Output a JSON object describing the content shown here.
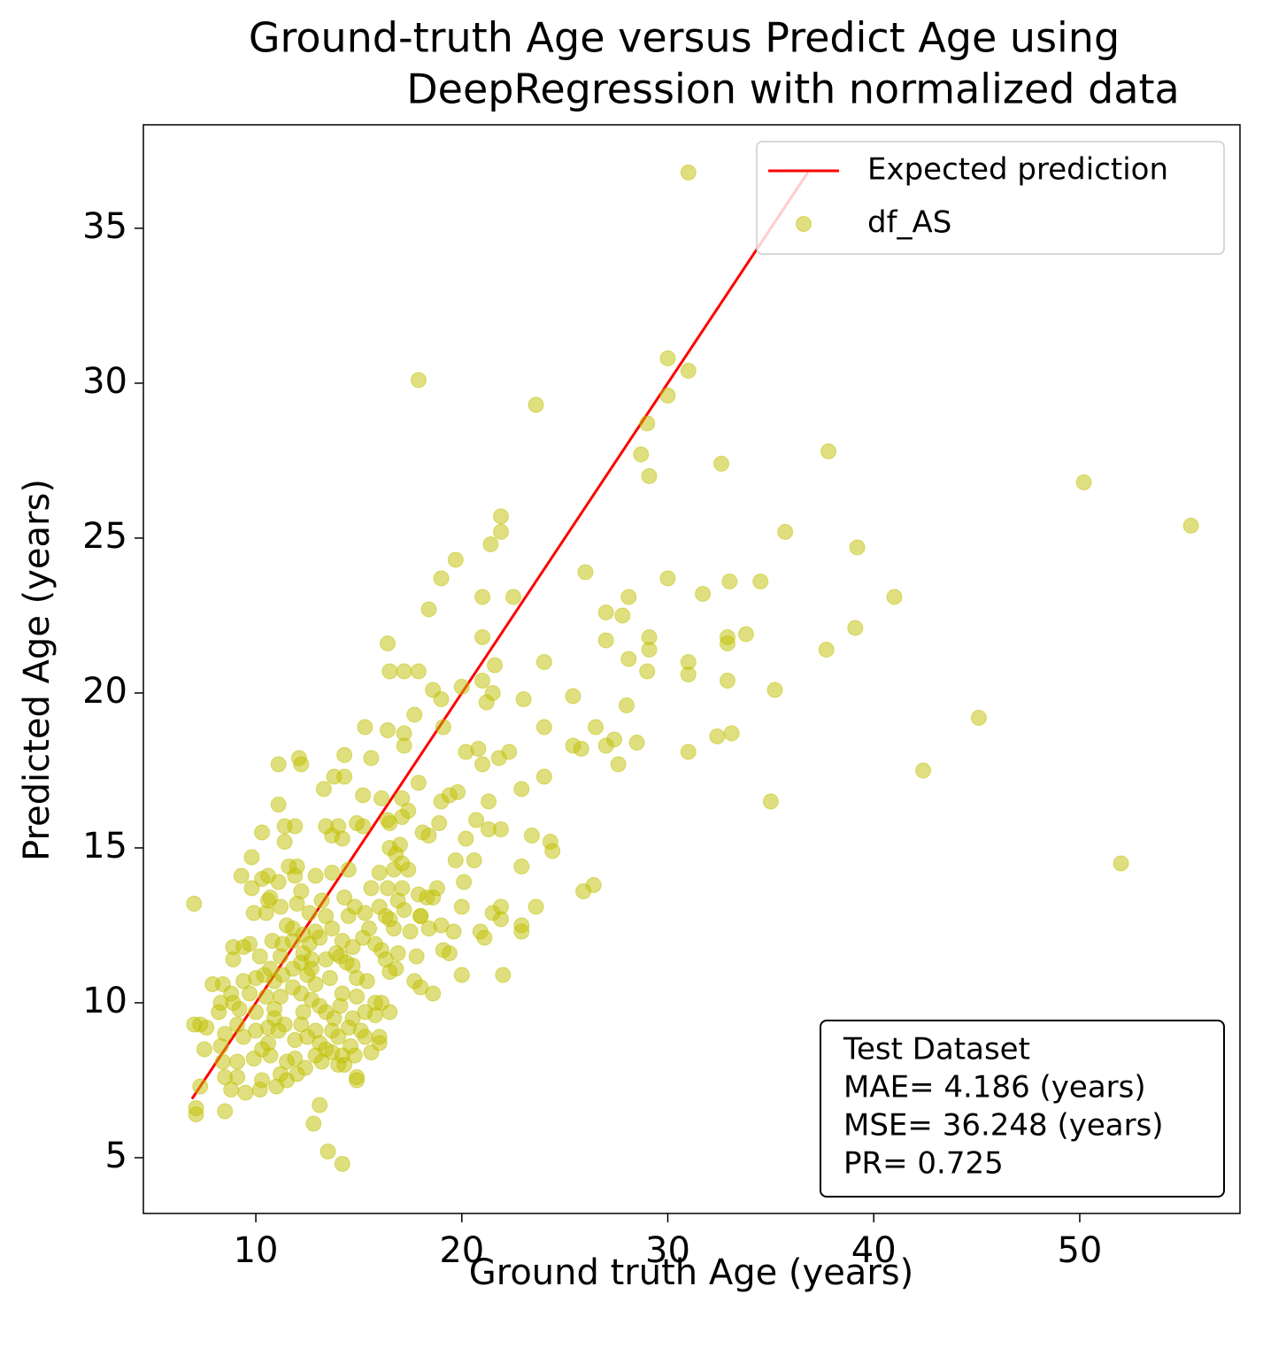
{
  "chart_data": {
    "type": "scatter",
    "title": [
      "Ground-truth Age versus Predict Age using",
      "DeepRegression  with normalized data"
    ],
    "x_label": "Ground truth Age (years)",
    "y_label": "Predicted Age (years)",
    "xlim": [
      4.54,
      57.78
    ],
    "ylim": [
      3.2,
      38.34
    ],
    "xticks": [
      10,
      20,
      30,
      40,
      50
    ],
    "yticks": [
      5,
      10,
      15,
      20,
      25,
      30,
      35
    ],
    "legend": "upper right",
    "annotation": [
      "Test Dataset",
      "MAE= 4.186 (years)",
      "MSE= 36.248 (years)",
      "PR= 0.725"
    ],
    "series": [
      {
        "name": "Expected prediction",
        "type": "line",
        "color": "#ff0000",
        "x": [
          6.9,
          36.8
        ],
        "y": [
          6.9,
          36.8
        ]
      },
      {
        "name": "df_AS",
        "type": "scatter",
        "color": "#bfbf00",
        "alpha": 0.5,
        "x": [
          31.0,
          17.9,
          23.6,
          30.0,
          31.0,
          30.0,
          29.0,
          28.7,
          29.1,
          32.6,
          37.8,
          50.2,
          55.4,
          35.7,
          39.2,
          21.9,
          21.9,
          21.4,
          19.7,
          26.0,
          30.0,
          19.0,
          21.0,
          22.5,
          31.7,
          33.0,
          34.5,
          41.0,
          28.1,
          18.4,
          27.0,
          27.8,
          39.1,
          33.8,
          29.1,
          27.0,
          21.0,
          32.9,
          32.9,
          29.1,
          37.7,
          16.4,
          28.1,
          24.0,
          31.0,
          17.9,
          16.5,
          17.2,
          21.6,
          29.0,
          31.0,
          21.0,
          32.9,
          20.0,
          18.6,
          35.2,
          19.0,
          21.5,
          25.4,
          23.0,
          21.2,
          28.0,
          17.7,
          45.1,
          19.1,
          24.0,
          26.5,
          15.3,
          16.4,
          17.2,
          33.1,
          27.4,
          28.5,
          17.2,
          25.4,
          25.8,
          27.0,
          32.4,
          20.2,
          20.8,
          31.0,
          21.8,
          22.3,
          14.3,
          15.6,
          12.1,
          12.2,
          11.1,
          27.6,
          21.0,
          42.4,
          13.8,
          14.3,
          24.0,
          17.9,
          13.3,
          22.9,
          19.8,
          15.2,
          19.4,
          19.0,
          35.0,
          11.1,
          21.3,
          16.1,
          17.1,
          17.4,
          17.1,
          16.4,
          20.7,
          18.1,
          10.3,
          11.4,
          11.9,
          13.4,
          14.0,
          14.9,
          16.5,
          18.4,
          21.3,
          21.9,
          23.4,
          24.3,
          24.4,
          13.7,
          14.2,
          20.2,
          18.9,
          15.2,
          11.4,
          17.0,
          16.5,
          16.8,
          9.8,
          19.7,
          20.6,
          22.9,
          17.1,
          11.6,
          12.0,
          52.0,
          17.4,
          16.7,
          13.7,
          14.5,
          9.3,
          12.9,
          10.3,
          10.6,
          11.1,
          11.9,
          16.0,
          20.1,
          26.4,
          25.9,
          15.6,
          16.4,
          17.1,
          18.8,
          12.2,
          9.8,
          10.7,
          7.0,
          10.6,
          14.3,
          17.9,
          18.3,
          18.6,
          16.9,
          13.2,
          12.0,
          11.2,
          16.0,
          14.8,
          17.2,
          23.6,
          21.9,
          20.0,
          9.9,
          10.5,
          12.6,
          13.4,
          16.3,
          18.0,
          18.0,
          21.5,
          13.7,
          14.5,
          15.3,
          16.5,
          21.9,
          11.5,
          11.8,
          16.7,
          17.5,
          18.4,
          19.0,
          22.9,
          22.9,
          12.9,
          12.3,
          13.1,
          15.2,
          15.5,
          19.6,
          20.9,
          21.1,
          10.8,
          11.8,
          14.2,
          15.8,
          9.4,
          8.9,
          9.7,
          11.3,
          12.6,
          14.7,
          19.1,
          19.4,
          12.3,
          13.9,
          16.1,
          16.9,
          10.2,
          11.2,
          12.7,
          13.4,
          14.1,
          8.9,
          12.2,
          14.4,
          14.7,
          16.3,
          17.8,
          10.7,
          11.8,
          12.7,
          16.8,
          16.5,
          11.3,
          10.0,
          10.4,
          12.5,
          13.6,
          14.9,
          15.4,
          17.7,
          18.0,
          20.0,
          22.0,
          7.9,
          8.4,
          9.4,
          10.9,
          11.8,
          12.9,
          18.6,
          8.8,
          9.7,
          11.2,
          10.5,
          12.2,
          14.2,
          14.9,
          8.3,
          8.9,
          12.7,
          15.8,
          16.1,
          9.2,
          10.9,
          13.1,
          14.1,
          8.2,
          10.0,
          12.3,
          13.4,
          15.3,
          16.5,
          10.9,
          11.4,
          13.8,
          14.7,
          15.8,
          7.0,
          7.3,
          7.6,
          9.1,
          10.6,
          12.2,
          12.9,
          13.7,
          14.5,
          11.1,
          10.0,
          8.5,
          15.1,
          15.3,
          16.0,
          9.4,
          12.5,
          14.0,
          11.9,
          10.6,
          8.3,
          13.1,
          14.6,
          16.0,
          7.5,
          10.3,
          13.4,
          13.7,
          15.6,
          10.7,
          12.9,
          14.2,
          14.8,
          9.9,
          8.4,
          11.9,
          9.1,
          13.2,
          11.5,
          14.0,
          14.3,
          12.4,
          11.2,
          12.0,
          8.5,
          14.9,
          9.1,
          11.5,
          14.9,
          10.3,
          11.0,
          10.2,
          7.3,
          8.8,
          9.5,
          13.1,
          7.1,
          7.1,
          8.5,
          12.8,
          13.5,
          14.2
        ],
        "y": [
          36.8,
          30.1,
          29.3,
          30.8,
          30.4,
          29.6,
          28.7,
          27.7,
          27.0,
          27.4,
          27.8,
          26.8,
          25.4,
          25.2,
          24.7,
          25.7,
          25.2,
          24.8,
          24.3,
          23.9,
          23.7,
          23.7,
          23.1,
          23.1,
          23.2,
          23.6,
          23.6,
          23.1,
          23.1,
          22.7,
          22.6,
          22.5,
          22.1,
          21.9,
          21.8,
          21.7,
          21.8,
          21.8,
          21.6,
          21.4,
          21.4,
          21.6,
          21.1,
          21.0,
          21.0,
          20.7,
          20.7,
          20.7,
          20.9,
          20.7,
          20.6,
          20.4,
          20.4,
          20.2,
          20.1,
          20.1,
          19.8,
          20.0,
          19.9,
          19.8,
          19.7,
          19.6,
          19.3,
          19.2,
          18.9,
          18.9,
          18.9,
          18.9,
          18.8,
          18.7,
          18.7,
          18.5,
          18.4,
          18.3,
          18.3,
          18.2,
          18.3,
          18.6,
          18.1,
          18.2,
          18.1,
          17.9,
          18.1,
          18.0,
          17.9,
          17.9,
          17.7,
          17.7,
          17.7,
          17.7,
          17.5,
          17.3,
          17.3,
          17.3,
          17.1,
          16.9,
          16.9,
          16.8,
          16.7,
          16.7,
          16.5,
          16.5,
          16.4,
          16.5,
          16.6,
          16.6,
          16.2,
          16.0,
          15.9,
          15.9,
          15.5,
          15.5,
          15.7,
          15.7,
          15.7,
          15.7,
          15.8,
          15.8,
          15.4,
          15.6,
          15.6,
          15.4,
          15.2,
          14.9,
          15.4,
          15.3,
          15.3,
          15.8,
          15.7,
          15.2,
          15.1,
          15.0,
          14.8,
          14.7,
          14.6,
          14.6,
          14.4,
          14.5,
          14.4,
          14.4,
          14.5,
          14.3,
          14.3,
          14.2,
          14.3,
          14.1,
          14.1,
          14.0,
          14.1,
          13.9,
          14.1,
          14.2,
          13.9,
          13.8,
          13.6,
          13.7,
          13.7,
          13.7,
          13.7,
          13.6,
          13.7,
          13.4,
          13.2,
          13.3,
          13.4,
          13.5,
          13.4,
          13.4,
          13.3,
          13.3,
          13.2,
          13.1,
          13.1,
          13.1,
          13.0,
          13.1,
          13.1,
          13.1,
          12.9,
          12.9,
          12.9,
          12.8,
          12.8,
          12.8,
          12.8,
          12.9,
          12.4,
          12.8,
          12.9,
          12.7,
          12.7,
          12.5,
          12.4,
          12.4,
          12.3,
          12.4,
          12.5,
          12.5,
          12.3,
          12.3,
          12.2,
          12.1,
          12.1,
          12.4,
          12.3,
          12.3,
          12.1,
          12.0,
          12.0,
          12.0,
          11.9,
          11.8,
          11.8,
          11.9,
          11.9,
          11.9,
          11.8,
          11.7,
          11.6,
          11.6,
          11.6,
          11.7,
          11.6,
          11.5,
          11.5,
          11.4,
          11.4,
          11.5,
          11.4,
          11.3,
          11.3,
          11.2,
          11.4,
          11.5,
          11.1,
          11.1,
          11.1,
          11.1,
          11.0,
          10.9,
          10.8,
          10.9,
          10.9,
          10.8,
          10.8,
          10.7,
          10.7,
          10.5,
          10.9,
          10.9,
          10.6,
          10.6,
          10.7,
          10.7,
          10.5,
          10.6,
          10.3,
          10.3,
          10.3,
          10.2,
          10.2,
          10.3,
          10.3,
          10.2,
          10.0,
          10.0,
          10.1,
          10.0,
          10.0,
          9.8,
          9.8,
          9.9,
          9.9,
          9.7,
          9.7,
          9.7,
          9.7,
          9.7,
          9.7,
          9.5,
          9.3,
          9.5,
          9.5,
          9.6,
          9.3,
          9.3,
          9.2,
          9.3,
          9.2,
          9.3,
          9.1,
          9.1,
          9.2,
          9.1,
          9.1,
          9.0,
          9.1,
          8.9,
          8.9,
          8.9,
          8.9,
          8.9,
          8.8,
          8.7,
          8.6,
          8.7,
          8.6,
          8.7,
          8.5,
          8.5,
          8.5,
          8.4,
          8.4,
          8.3,
          8.3,
          8.3,
          8.3,
          8.2,
          8.1,
          8.2,
          8.1,
          8.1,
          8.1,
          8.0,
          8.0,
          7.9,
          7.7,
          7.7,
          7.6,
          7.6,
          7.6,
          7.5,
          7.5,
          7.5,
          7.3,
          7.2,
          7.3,
          7.2,
          7.1,
          6.7,
          6.6,
          6.4,
          6.5,
          6.1,
          5.2,
          4.8
        ]
      }
    ]
  }
}
